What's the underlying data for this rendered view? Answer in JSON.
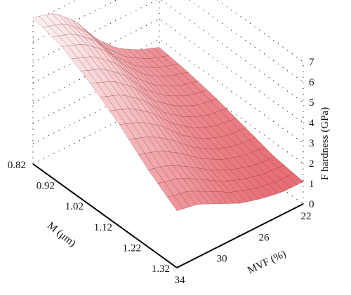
{
  "chart_data": {
    "type": "surface3d",
    "title": "",
    "z_axis": {
      "label": "F hardness (GPa)",
      "ticks": [
        "0",
        "1",
        "2",
        "3",
        "4",
        "5",
        "6",
        "7"
      ],
      "range": [
        0,
        7
      ]
    },
    "m_axis": {
      "label": "M (μm)",
      "ticks": [
        "0.82",
        "0.92",
        "1.02",
        "1.12",
        "1.22",
        "1.32"
      ],
      "range": [
        0.82,
        1.32
      ]
    },
    "mvf_axis": {
      "label": "MVF (%)",
      "ticks": [
        "22",
        "26",
        "30",
        "34"
      ],
      "range": [
        22,
        34
      ]
    },
    "surface": {
      "m_values": [
        0.82,
        0.92,
        1.02,
        1.12,
        1.22,
        1.32
      ],
      "mvf_values": [
        22,
        24,
        26,
        28,
        30,
        32,
        34
      ],
      "z_rows": [
        [
          2.6,
          3.0,
          3.6,
          4.6,
          6.0,
          6.9,
          7.2
        ],
        [
          2.4,
          2.7,
          3.3,
          4.3,
          5.6,
          6.4,
          6.8
        ],
        [
          2.1,
          2.3,
          2.8,
          3.6,
          4.8,
          5.6,
          6.0
        ],
        [
          1.7,
          1.8,
          2.2,
          2.9,
          3.9,
          4.6,
          5.0
        ],
        [
          1.3,
          1.4,
          1.7,
          2.2,
          2.9,
          3.5,
          3.8
        ],
        [
          1.1,
          1.1,
          1.3,
          1.6,
          2.1,
          2.6,
          2.8
        ]
      ]
    },
    "colors": {
      "surface_low": "#e66b72",
      "surface_high": "#fbeeee",
      "mesh": "#7a1018"
    }
  }
}
